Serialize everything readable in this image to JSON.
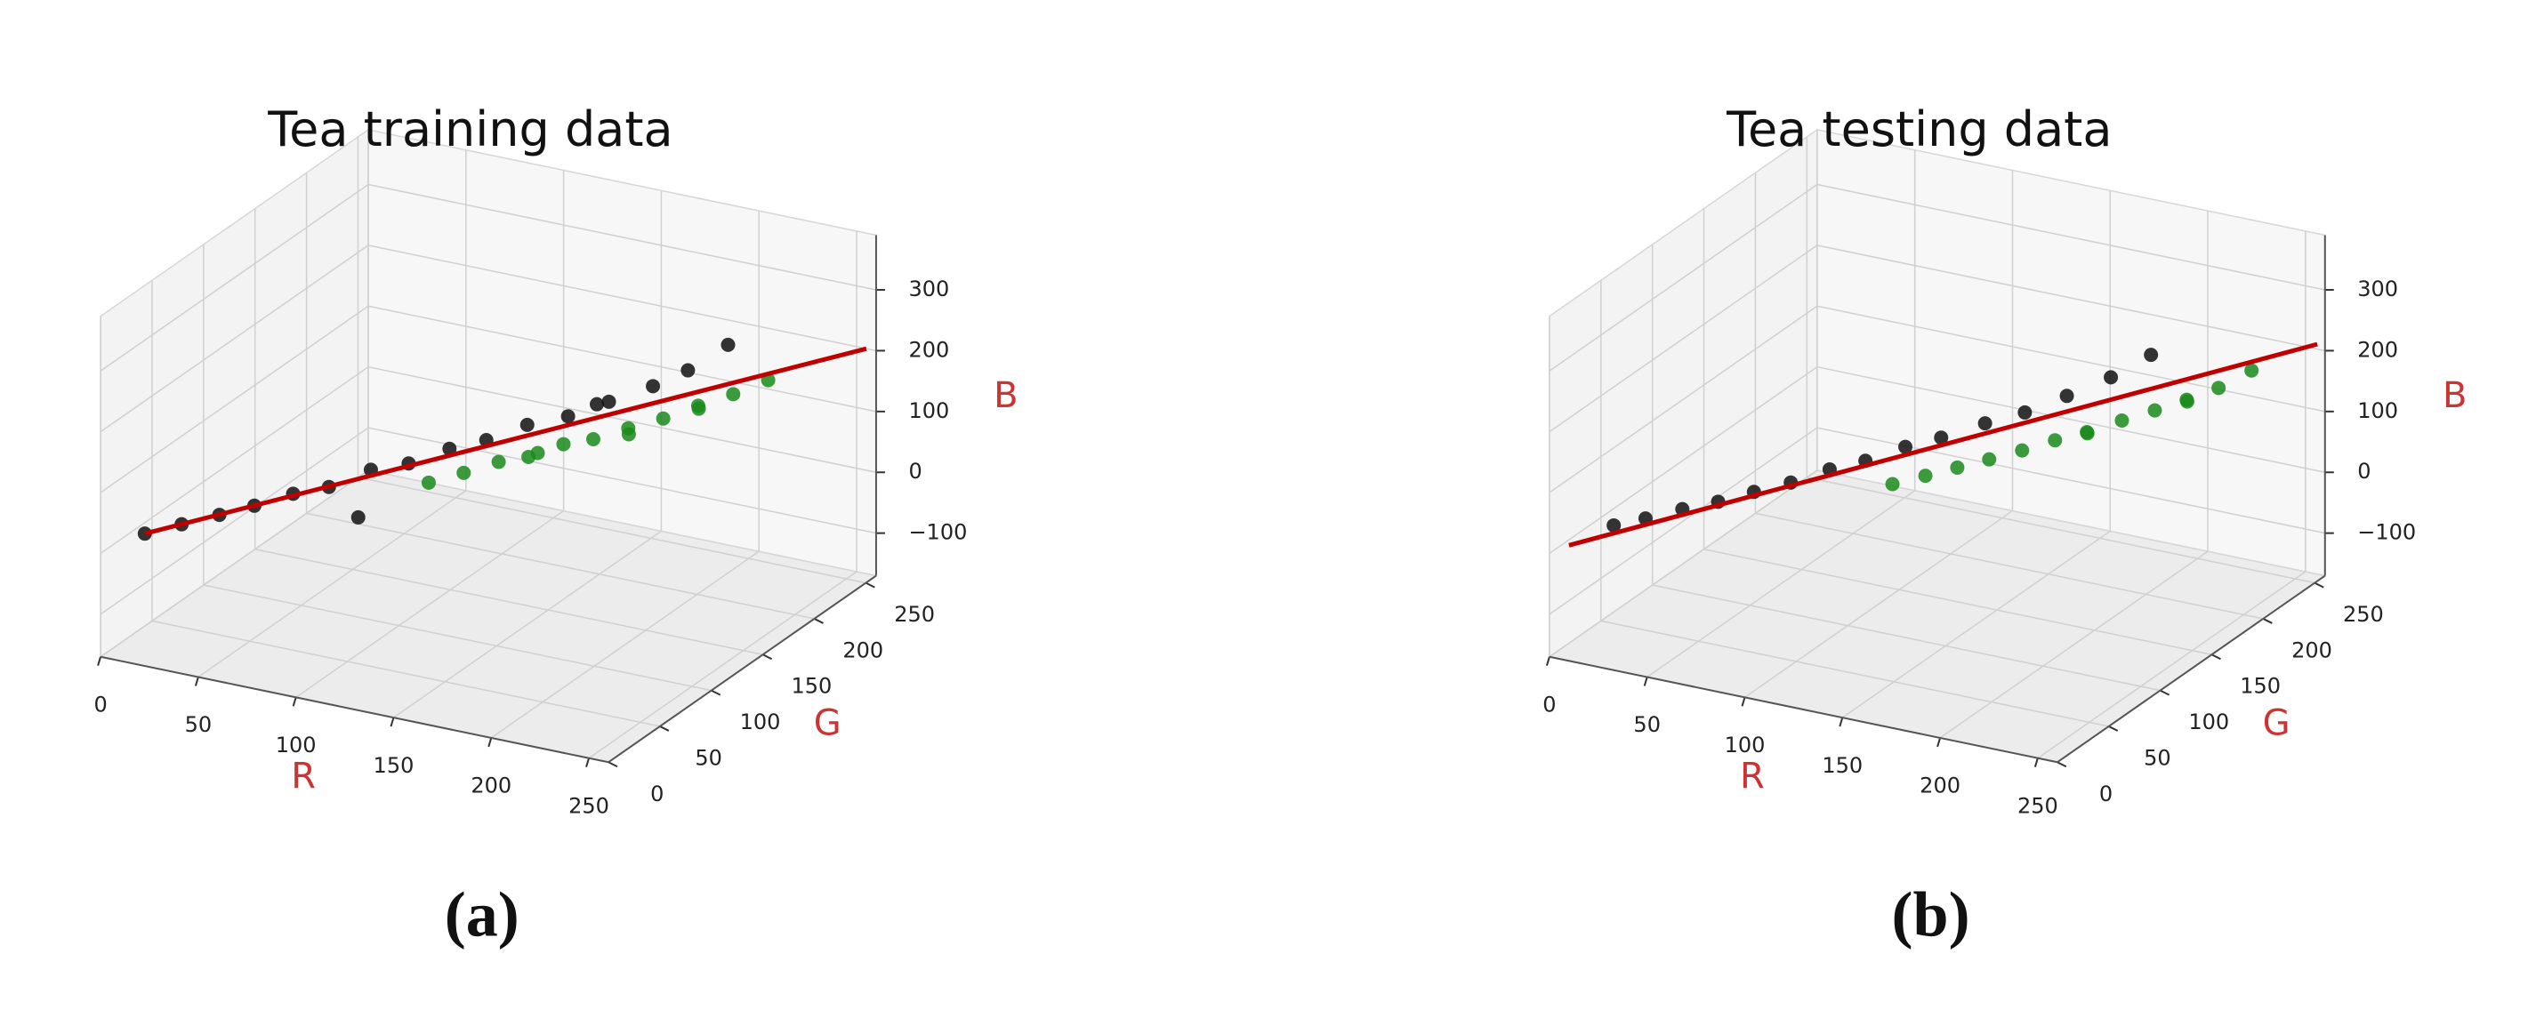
{
  "chart_data": [
    {
      "type": "scatter3d",
      "title": "Tea training data",
      "caption": "(a)",
      "xlabel": "R",
      "ylabel": "G",
      "zlabel": "B",
      "xlim": [
        0,
        260
      ],
      "ylim": [
        0,
        260
      ],
      "zlim": [
        -170,
        390
      ],
      "xticks": [
        0,
        50,
        100,
        150,
        200,
        250
      ],
      "yticks": [
        0,
        50,
        100,
        150,
        200,
        250
      ],
      "zticks": [
        {
          "value": -100,
          "label": "−100"
        },
        0,
        100,
        200,
        300
      ],
      "grid": true,
      "series": [
        {
          "color": "#111111",
          "x": [
            20,
            32,
            45,
            55,
            68,
            80,
            92,
            105,
            118,
            130,
            142,
            155,
            168,
            180,
            190,
            200,
            175,
            95
          ],
          "y": [
            5,
            18,
            30,
            45,
            58,
            70,
            88,
            100,
            115,
            128,
            145,
            160,
            175,
            195,
            210,
            230,
            150,
            70
          ],
          "z": [
            40,
            48,
            58,
            62,
            75,
            80,
            95,
            100,
            115,
            122,
            135,
            140,
            155,
            165,
            180,
            205,
            185,
            40
          ]
        },
        {
          "color": "#1a8a1a",
          "x": [
            110,
            120,
            130,
            140,
            150,
            160,
            170,
            180,
            190,
            200,
            210,
            165,
            185,
            150
          ],
          "y": [
            110,
            125,
            140,
            150,
            165,
            175,
            190,
            205,
            220,
            235,
            250,
            200,
            230,
            140
          ],
          "z": [
            60,
            65,
            72,
            75,
            85,
            88,
            95,
            100,
            110,
            118,
            130,
            70,
            90,
            100
          ]
        }
      ],
      "line": {
        "color": "#c00000",
        "x": [
          20,
          255
        ],
        "y": [
          5,
          260
        ],
        "z": [
          40,
          200
        ]
      }
    },
    {
      "type": "scatter3d",
      "title": "Tea testing data",
      "caption": "(b)",
      "xlabel": "R",
      "ylabel": "G",
      "zlabel": "B",
      "xlim": [
        0,
        260
      ],
      "ylim": [
        0,
        260
      ],
      "zlim": [
        -170,
        390
      ],
      "xticks": [
        0,
        50,
        100,
        150,
        200,
        250
      ],
      "yticks": [
        0,
        50,
        100,
        150,
        200,
        250
      ],
      "zticks": [
        {
          "value": -100,
          "label": "−100"
        },
        0,
        100,
        200,
        300
      ],
      "grid": true,
      "series": [
        {
          "color": "#111111",
          "x": [
            25,
            36,
            48,
            60,
            72,
            84,
            96,
            108,
            120,
            132,
            145,
            158,
            170,
            182,
            192
          ],
          "y": [
            15,
            25,
            38,
            50,
            62,
            75,
            90,
            102,
            118,
            130,
            148,
            162,
            180,
            200,
            220
          ],
          "z": [
            45,
            52,
            60,
            66,
            76,
            84,
            96,
            104,
            116,
            125,
            136,
            146,
            160,
            175,
            195
          ]
        },
        {
          "color": "#1a8a1a",
          "x": [
            115,
            125,
            135,
            145,
            155,
            165,
            175,
            185,
            195,
            205,
            215,
            225,
            170,
            200
          ],
          "y": [
            115,
            128,
            140,
            152,
            165,
            178,
            190,
            205,
            218,
            230,
            242,
            255,
            200,
            240
          ],
          "z": [
            55,
            60,
            66,
            72,
            78,
            86,
            92,
            100,
            108,
            118,
            130,
            150,
            75,
            100
          ]
        }
      ],
      "line": {
        "color": "#c00000",
        "x": [
          10,
          255
        ],
        "y": [
          0,
          262
        ],
        "z": [
          20,
          205
        ]
      }
    }
  ]
}
